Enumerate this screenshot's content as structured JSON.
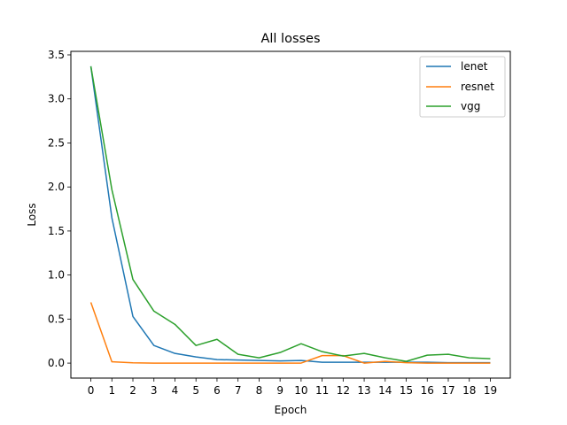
{
  "chart_data": {
    "type": "line",
    "title": "All losses",
    "xlabel": "Epoch",
    "ylabel": "Loss",
    "x": [
      0,
      1,
      2,
      3,
      4,
      5,
      6,
      7,
      8,
      9,
      10,
      11,
      12,
      13,
      14,
      15,
      16,
      17,
      18,
      19
    ],
    "xticks": [
      "0",
      "1",
      "2",
      "3",
      "4",
      "5",
      "6",
      "7",
      "8",
      "9",
      "10",
      "11",
      "12",
      "13",
      "14",
      "15",
      "16",
      "17",
      "18",
      "19"
    ],
    "yticks": [
      "0.0",
      "0.5",
      "1.0",
      "1.5",
      "2.0",
      "2.5",
      "3.0",
      "3.5"
    ],
    "ytick_values": [
      0.0,
      0.5,
      1.0,
      1.5,
      2.0,
      2.5,
      3.0,
      3.5
    ],
    "xlim": [
      -0.95,
      19.95
    ],
    "ylim": [
      -0.17,
      3.54
    ],
    "grid": false,
    "legend_position": "top-right",
    "series": [
      {
        "name": "lenet",
        "color": "#1f77b4",
        "values": [
          3.37,
          1.65,
          0.53,
          0.2,
          0.11,
          0.07,
          0.04,
          0.035,
          0.03,
          0.025,
          0.03,
          0.01,
          0.01,
          0.01,
          0.01,
          0.01,
          0.01,
          0.005,
          0.005,
          0.005
        ]
      },
      {
        "name": "resnet",
        "color": "#ff7f0e",
        "values": [
          0.69,
          0.015,
          0.003,
          0.0,
          0.0,
          0.0,
          0.0,
          0.0,
          0.0,
          0.0,
          0.0,
          0.085,
          0.085,
          0.0,
          0.02,
          0.005,
          0.0,
          0.0,
          0.0,
          0.0
        ]
      },
      {
        "name": "vgg",
        "color": "#2ca02c",
        "values": [
          3.37,
          1.97,
          0.95,
          0.59,
          0.44,
          0.2,
          0.27,
          0.1,
          0.06,
          0.12,
          0.22,
          0.13,
          0.08,
          0.11,
          0.06,
          0.02,
          0.09,
          0.1,
          0.06,
          0.05
        ]
      }
    ]
  }
}
